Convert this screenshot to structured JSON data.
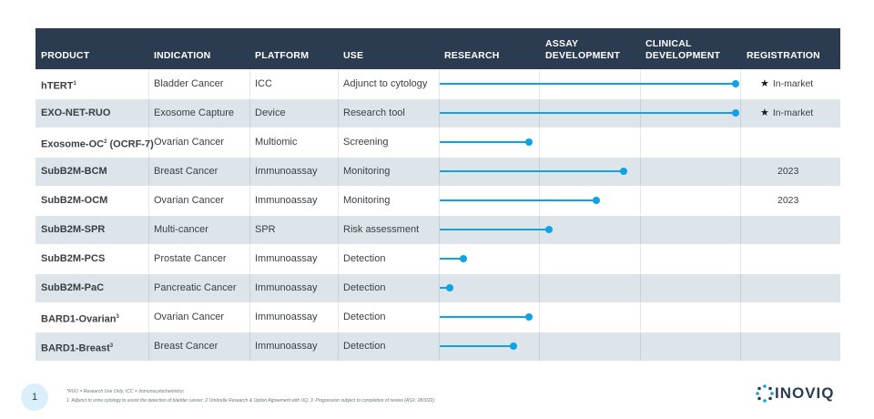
{
  "colors": {
    "header_bg": "#2b3c51",
    "accent": "#0ea3e3",
    "shaded_row": "#dde5ea"
  },
  "columns": {
    "product": "PRODUCT",
    "indication": "INDICATION",
    "platform": "PLATFORM",
    "use": "USE",
    "research": "RESEARCH",
    "assay_1": "ASSAY",
    "assay_2": "DEVELOPMENT",
    "clinical_1": "CLINICAL",
    "clinical_2": "DEVELOPMENT",
    "registration": "REGISTRATION"
  },
  "rows": [
    {
      "product": "hTERT",
      "sup": "1",
      "indication": "Bladder Cancer",
      "platform": "ICC",
      "use": "Adjunct to cytology",
      "progress": 1.0,
      "registration": "In-market",
      "star": true
    },
    {
      "product": "EXO-NET-RUO",
      "sup": "",
      "indication": "Exosome Capture",
      "platform": "Device",
      "use": "Research tool",
      "progress": 1.0,
      "registration": "In-market",
      "star": true
    },
    {
      "product": "Exosome-OC",
      "sup": "2",
      "suffix": " (OCRF-7)",
      "indication": "Ovarian Cancer",
      "platform": "Multiomic",
      "use": "Screening",
      "progress": 0.3,
      "registration": "",
      "star": false
    },
    {
      "product": "SubB2M-BCM",
      "sup": "",
      "indication": "Breast Cancer",
      "platform": "Immunoassay",
      "use": "Monitoring",
      "progress": 0.62,
      "registration": "2023",
      "star": false
    },
    {
      "product": "SubB2M-OCM",
      "sup": "",
      "indication": "Ovarian Cancer",
      "platform": "Immunoassay",
      "use": "Monitoring",
      "progress": 0.53,
      "registration": "2023",
      "star": false
    },
    {
      "product": "SubB2M-SPR",
      "sup": "",
      "indication": "Multi-cancer",
      "platform": "SPR",
      "use": "Risk assessment",
      "progress": 0.37,
      "registration": "",
      "star": false
    },
    {
      "product": "SubB2M-PCS",
      "sup": "",
      "indication": "Prostate Cancer",
      "platform": "Immunoassay",
      "use": "Detection",
      "progress": 0.08,
      "registration": "",
      "star": false
    },
    {
      "product": "SubB2M-PaC",
      "sup": "",
      "indication": "Pancreatic Cancer",
      "platform": "Immunoassay",
      "use": "Detection",
      "progress": 0.035,
      "registration": "",
      "star": false
    },
    {
      "product": "BARD1-Ovarian",
      "sup": "3",
      "indication": "Ovarian Cancer",
      "platform": "Immunoassay",
      "use": "Detection",
      "progress": 0.3,
      "registration": "",
      "star": false
    },
    {
      "product": "BARD1-Breast",
      "sup": "3",
      "indication": "Breast Cancer",
      "platform": "Immunoassay",
      "use": "Detection",
      "progress": 0.25,
      "registration": "",
      "star": false
    }
  ],
  "footer": {
    "page_number": "1",
    "note_1": "*RUO = Research Use Only; ICC = Immunocytochemistry;",
    "note_2": "1. Adjunct to urine cytology to assist the detection of bladder cancer; 2 Umbrella Research & Option Agreement with UQ, 3. Progression subject to completion of review (ASX: 28/3/22)",
    "logo": "INOVIQ"
  }
}
